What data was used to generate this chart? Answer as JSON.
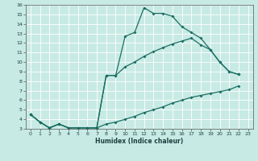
{
  "xlabel": "Humidex (Indice chaleur)",
  "xlim": [
    -0.5,
    23.5
  ],
  "ylim": [
    3,
    16
  ],
  "xticks": [
    0,
    1,
    2,
    3,
    4,
    5,
    6,
    7,
    8,
    9,
    10,
    11,
    12,
    13,
    14,
    15,
    16,
    17,
    18,
    19,
    20,
    21,
    22,
    23
  ],
  "yticks": [
    3,
    4,
    5,
    6,
    7,
    8,
    9,
    10,
    11,
    12,
    13,
    14,
    15,
    16
  ],
  "bg_color": "#c8eae4",
  "grid_color": "#b0d8d0",
  "line_color": "#1a6e62",
  "curve1_x": [
    0,
    1,
    2,
    3,
    4,
    5,
    6,
    7,
    8,
    9,
    10,
    11,
    12,
    13,
    14,
    15,
    16,
    17,
    18,
    19,
    20,
    21,
    22
  ],
  "curve1_y": [
    4.5,
    3.7,
    3.1,
    3.5,
    3.1,
    3.1,
    3.1,
    3.1,
    8.6,
    8.6,
    12.7,
    13.1,
    15.7,
    15.1,
    15.1,
    14.8,
    13.7,
    13.1,
    12.5,
    11.3,
    10.0,
    9.0,
    8.7
  ],
  "curve2_x": [
    0,
    1,
    2,
    3,
    4,
    5,
    6,
    7,
    8,
    9,
    10,
    11,
    12,
    13,
    14,
    15,
    16,
    17,
    18,
    19,
    20,
    21,
    22
  ],
  "curve2_y": [
    4.5,
    3.7,
    3.1,
    3.5,
    3.1,
    3.1,
    3.1,
    3.1,
    8.6,
    8.6,
    9.5,
    10.0,
    10.6,
    11.1,
    11.5,
    11.9,
    12.2,
    12.5,
    11.8,
    11.3,
    10.0,
    9.0,
    8.7
  ],
  "curve3_x": [
    0,
    1,
    2,
    3,
    4,
    5,
    6,
    7,
    8,
    9,
    10,
    11,
    12,
    13,
    14,
    15,
    16,
    17,
    18,
    19,
    20,
    21,
    22
  ],
  "curve3_y": [
    4.5,
    3.7,
    3.1,
    3.5,
    3.1,
    3.1,
    3.1,
    3.1,
    3.5,
    3.7,
    4.0,
    4.3,
    4.7,
    5.0,
    5.3,
    5.7,
    6.0,
    6.3,
    6.5,
    6.7,
    6.9,
    7.1,
    7.5
  ]
}
